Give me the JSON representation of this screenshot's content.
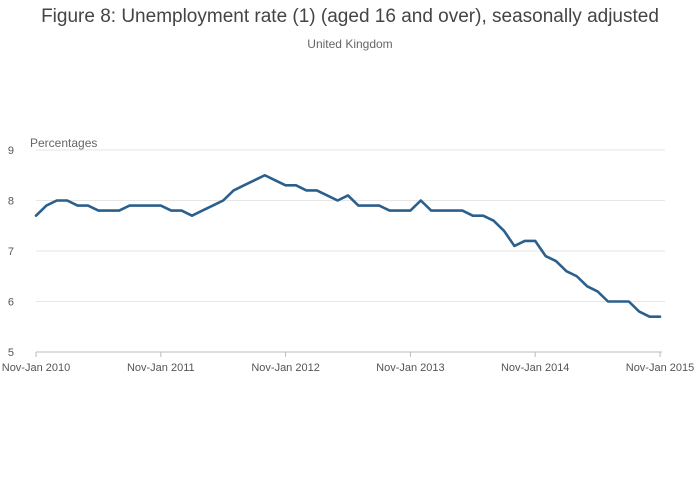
{
  "chart_data": {
    "type": "line",
    "title": "Figure 8: Unemployment rate (1) (aged 16 and over), seasonally adjusted",
    "subtitle": "United Kingdom",
    "ylabel": "Percentages",
    "xlabel": "",
    "ylim": [
      5,
      9
    ],
    "yticks": [
      5,
      6,
      7,
      8,
      9
    ],
    "xticks": [
      {
        "index": 0,
        "label": "Nov-Jan 2010"
      },
      {
        "index": 12,
        "label": "Nov-Jan 2011"
      },
      {
        "index": 24,
        "label": "Nov-Jan 2012"
      },
      {
        "index": 36,
        "label": "Nov-Jan 2013"
      },
      {
        "index": 48,
        "label": "Nov-Jan 2014"
      },
      {
        "index": 60,
        "label": "Nov-Jan 2015"
      }
    ],
    "grid": true,
    "series": [
      {
        "name": "Unemployment rate",
        "color": "#2b5f8c",
        "values": [
          7.7,
          7.9,
          8.0,
          8.0,
          7.9,
          7.9,
          7.8,
          7.8,
          7.8,
          7.9,
          7.9,
          7.9,
          7.9,
          7.8,
          7.8,
          7.7,
          7.8,
          7.9,
          8.0,
          8.2,
          8.3,
          8.4,
          8.5,
          8.4,
          8.3,
          8.3,
          8.2,
          8.2,
          8.1,
          8.0,
          8.1,
          7.9,
          7.9,
          7.9,
          7.8,
          7.8,
          7.8,
          8.0,
          7.8,
          7.8,
          7.8,
          7.8,
          7.7,
          7.7,
          7.6,
          7.4,
          7.1,
          7.2,
          7.2,
          6.9,
          6.8,
          6.6,
          6.5,
          6.3,
          6.2,
          6.0,
          6.0,
          6.0,
          5.8,
          5.7,
          5.7
        ]
      }
    ]
  }
}
